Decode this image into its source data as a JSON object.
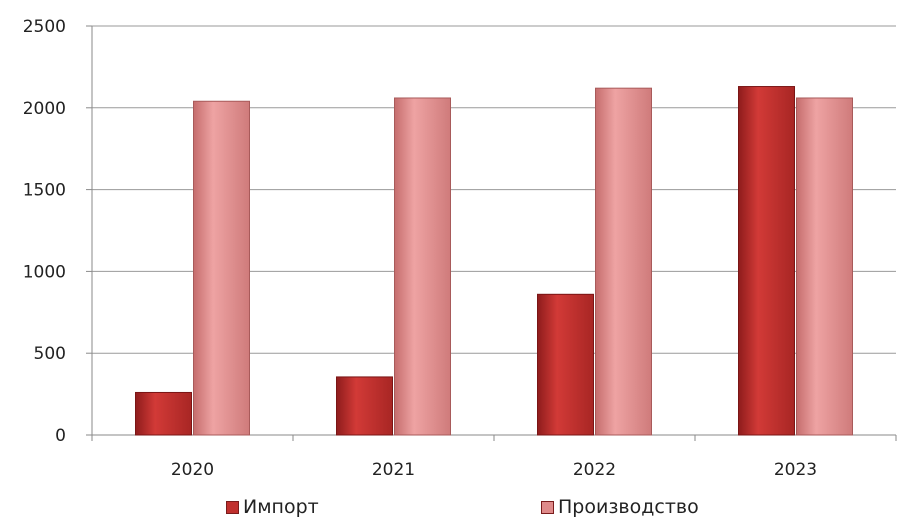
{
  "chart_data": {
    "type": "bar",
    "categories": [
      "2020",
      "2021",
      "2022",
      "2023"
    ],
    "series": [
      {
        "name": "Импорт",
        "values": [
          260,
          355,
          860,
          2130
        ],
        "color": "#c0302e"
      },
      {
        "name": "Производство",
        "values": [
          2040,
          2060,
          2120,
          2060
        ],
        "color": "#df8a8a"
      }
    ],
    "title": "",
    "xlabel": "",
    "ylabel": "",
    "ylim": [
      0,
      2500
    ],
    "yticks": [
      0,
      500,
      1000,
      1500,
      2000,
      2500
    ],
    "grid": true,
    "legend_position": "bottom"
  }
}
